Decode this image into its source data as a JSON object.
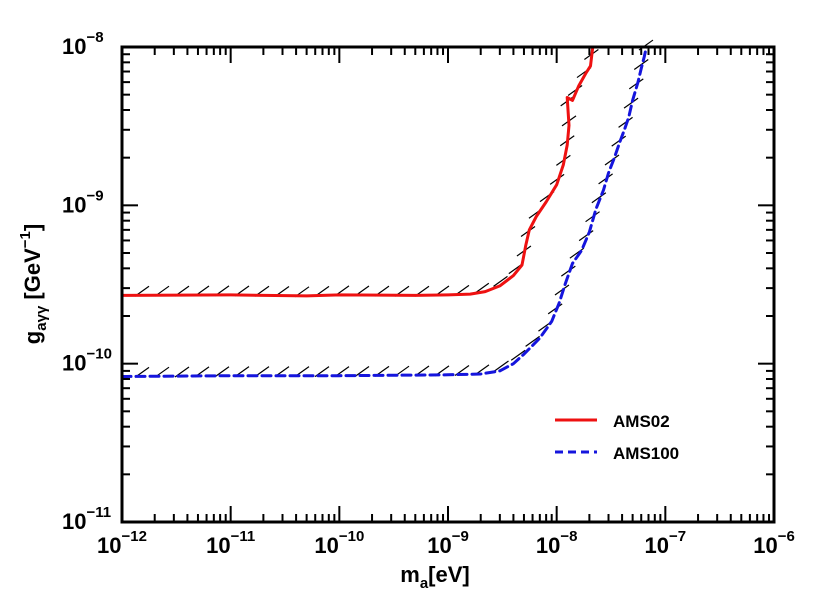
{
  "chart_data": {
    "type": "line",
    "x_scale": "log",
    "y_scale": "log",
    "xlim": [
      1e-12,
      1e-06
    ],
    "ylim": [
      1e-11,
      1e-08
    ],
    "xlabel": {
      "base": "m",
      "sub": "a",
      "rest": "[eV]"
    },
    "ylabel": {
      "base": "g",
      "sub": "aγγ",
      "rest": " [GeV",
      "sup": "−1",
      "end": "]"
    },
    "x_ticks": [
      {
        "value": 1e-12,
        "base": "10",
        "exp": "−12"
      },
      {
        "value": 1e-11,
        "base": "10",
        "exp": "−11"
      },
      {
        "value": 1e-10,
        "base": "10",
        "exp": "−10"
      },
      {
        "value": 1e-09,
        "base": "10",
        "exp": "−9"
      },
      {
        "value": 1e-08,
        "base": "10",
        "exp": "−8"
      },
      {
        "value": 1e-07,
        "base": "10",
        "exp": "−7"
      },
      {
        "value": 1e-06,
        "base": "10",
        "exp": "−6"
      }
    ],
    "y_ticks": [
      {
        "value": 1e-11,
        "base": "10",
        "exp": "−11"
      },
      {
        "value": 1e-10,
        "base": "10",
        "exp": "−10"
      },
      {
        "value": 1e-09,
        "base": "10",
        "exp": "−9"
      },
      {
        "value": 1e-08,
        "base": "10",
        "exp": "−8"
      }
    ],
    "grid": false,
    "legend_position": "lower-right",
    "series": [
      {
        "name": "AMS02",
        "color": "#ee1111",
        "style": "solid",
        "points": [
          [
            1e-12,
            2.7e-10
          ],
          [
            1e-11,
            2.72e-10
          ],
          [
            5e-11,
            2.68e-10
          ],
          [
            1e-10,
            2.72e-10
          ],
          [
            5e-10,
            2.7e-10
          ],
          [
            1e-09,
            2.72e-10
          ],
          [
            1.6e-09,
            2.75e-10
          ],
          [
            2.2e-09,
            2.85e-10
          ],
          [
            3e-09,
            3.1e-10
          ],
          [
            4e-09,
            3.6e-10
          ],
          [
            4.8e-09,
            4.2e-10
          ],
          [
            5.2e-09,
            5.6e-10
          ],
          [
            5.6e-09,
            7e-10
          ],
          [
            6.5e-09,
            8.5e-10
          ],
          [
            8e-09,
            1.05e-09
          ],
          [
            1e-08,
            1.35e-09
          ],
          [
            1.15e-08,
            1.8e-09
          ],
          [
            1.25e-08,
            2.4e-09
          ],
          [
            1.3e-08,
            3.2e-09
          ],
          [
            1.25e-08,
            4.8e-09
          ],
          [
            1.4e-08,
            4.6e-09
          ],
          [
            1.6e-08,
            5.7e-09
          ],
          [
            1.85e-08,
            6.8e-09
          ],
          [
            2.05e-08,
            7.6e-09
          ],
          [
            2.1e-08,
            8.8e-09
          ],
          [
            2.15e-08,
            1e-08
          ]
        ]
      },
      {
        "name": "AMS100",
        "color": "#1515dd",
        "style": "dashed",
        "points": [
          [
            1e-12,
            8.3e-11
          ],
          [
            1e-11,
            8.4e-11
          ],
          [
            1e-10,
            8.4e-11
          ],
          [
            1e-09,
            8.5e-11
          ],
          [
            2e-09,
            8.6e-11
          ],
          [
            3e-09,
            9e-11
          ],
          [
            4e-09,
            1e-10
          ],
          [
            5e-09,
            1.15e-10
          ],
          [
            7e-09,
            1.45e-10
          ],
          [
            9e-09,
            1.85e-10
          ],
          [
            1.05e-08,
            2.4e-10
          ],
          [
            1.2e-08,
            3.2e-10
          ],
          [
            1.4e-08,
            4.3e-10
          ],
          [
            1.7e-08,
            5.2e-10
          ],
          [
            2e-08,
            6.8e-10
          ],
          [
            2.3e-08,
            9.5e-10
          ],
          [
            2.7e-08,
            1.25e-09
          ],
          [
            3e-08,
            1.6e-09
          ],
          [
            3.4e-08,
            2e-09
          ],
          [
            3.8e-08,
            2.5e-09
          ],
          [
            4.2e-08,
            3e-09
          ],
          [
            4.6e-08,
            3.6e-09
          ],
          [
            5e-08,
            4.6e-09
          ],
          [
            5.6e-08,
            6e-09
          ],
          [
            6e-08,
            7.3e-09
          ],
          [
            6.4e-08,
            8.7e-09
          ],
          [
            6.7e-08,
            1e-08
          ]
        ]
      }
    ]
  }
}
